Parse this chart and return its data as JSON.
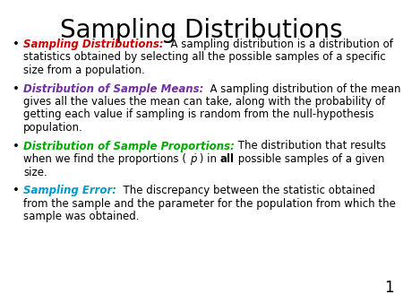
{
  "title": "Sampling Distributions",
  "title_fontsize": 20,
  "background_color": "#ffffff",
  "page_number": "1",
  "body_fontsize": 8.5,
  "bullet_color": "#000000",
  "body_color": "#000000",
  "items": [
    {
      "term": "Sampling Distributions:",
      "term_color": "#cc0000",
      "lines": [
        "  A sampling distribution is a distribution of",
        "statistics obtained by selecting all the possible samples of a specific",
        "size from a population."
      ]
    },
    {
      "term": "Distribution of Sample Means:",
      "term_color": "#7030a0",
      "lines": [
        "  A sampling distribution of the mean",
        "gives all the values the mean can take, along with the probability of",
        "getting each value if sampling is random from the null-hypothesis",
        "population."
      ]
    },
    {
      "term": "Distribution of Sample Proportions:",
      "term_color": "#00aa00",
      "lines_special": true,
      "line1_body": " The distribution that results",
      "line2_pre": "when we find the proportions ( ",
      "line2_phat": "ṗ",
      "line2_mid": " ) in ",
      "line2_bold": "all",
      "line2_post": " possible samples of a given",
      "line3": "size."
    },
    {
      "term": "Sampling Error:",
      "term_color": "#0099cc",
      "lines": [
        "  The discrepancy between the statistic obtained",
        "from the sample and the parameter for the population from which the",
        "sample was obtained."
      ]
    }
  ]
}
